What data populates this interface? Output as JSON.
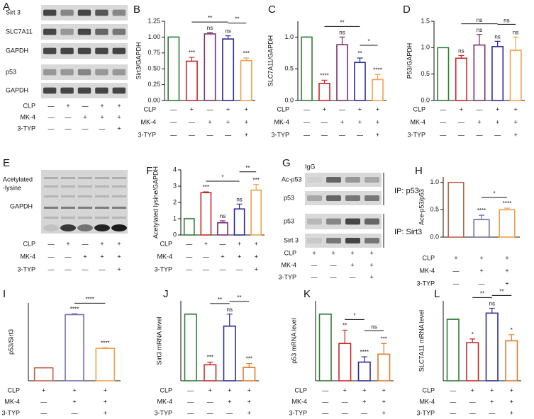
{
  "blots": [
    {
      "panel": "A",
      "labels": [
        "Sirt 3",
        "SLC7A11",
        "GAPDH",
        "p53",
        "GAPDH"
      ],
      "conditions": [
        {
          "name": "CLP",
          "marks": [
            "—",
            "+",
            "—",
            "+",
            "+"
          ]
        },
        {
          "name": "MK-4",
          "marks": [
            "—",
            "—",
            "+",
            "+",
            "+"
          ]
        },
        {
          "name": "3-TYP",
          "marks": [
            "—",
            "—",
            "—",
            "—",
            "+"
          ]
        }
      ]
    },
    {
      "panel": "E",
      "labels": [
        "Acetylated",
        "-lysine",
        "GAPDH"
      ],
      "conditions": [
        {
          "name": "CLP",
          "marks": [
            "—",
            "+",
            "—",
            "+",
            "+"
          ]
        },
        {
          "name": "MK-4",
          "marks": [
            "—",
            "—",
            "+",
            "+",
            "+"
          ]
        },
        {
          "name": "3-TYP",
          "marks": [
            "—",
            "—",
            "—",
            "—",
            "+"
          ]
        }
      ]
    },
    {
      "panel": "G",
      "labels": [
        "IgG",
        "Ac-p53",
        "p53",
        "IP: p53",
        "p53",
        "Sirt 3",
        "IP: Sirt3"
      ],
      "conditions": [
        {
          "name": "CLP",
          "marks": [
            "+",
            "+",
            "+",
            "+"
          ]
        },
        {
          "name": "MK-4",
          "marks": [
            "—",
            "—",
            "+",
            "+"
          ]
        },
        {
          "name": "3-TYP",
          "marks": [
            "—",
            "—",
            "—",
            "+"
          ]
        }
      ]
    }
  ],
  "chart_data": [
    {
      "type": "bar",
      "panel": "B",
      "ylabel": "Sirt3/GAPDH",
      "ylim": [
        0,
        1.25
      ],
      "yticks": [
        {
          "value": 0,
          "label": "0.00"
        },
        {
          "value": 0.25,
          "label": "0.25"
        },
        {
          "value": 0.5,
          "label": "0.50"
        },
        {
          "value": 0.75,
          "label": "0.75"
        },
        {
          "value": 1,
          "label": "1.00"
        },
        {
          "value": 1.25,
          "label": "1.25"
        }
      ],
      "values": [
        1.0,
        0.62,
        1.05,
        0.97,
        0.63
      ],
      "errors": [
        0,
        0.06,
        0.02,
        0.05,
        0.04
      ],
      "colors": [
        "#2e7d32",
        "#c62828",
        "#7b2d6e",
        "#2b2b95",
        "#f0a04b"
      ],
      "annotations": [
        "",
        "***",
        "ns",
        "ns",
        "***"
      ],
      "brackets": [
        {
          "label": "**",
          "bars": [
            1,
            3
          ]
        },
        {
          "label": "**",
          "bars": [
            3,
            4
          ]
        }
      ],
      "conditions": [
        {
          "name": "CLP",
          "marks": [
            "—",
            "+",
            "—",
            "+",
            "+"
          ]
        },
        {
          "name": "MK-4",
          "marks": [
            "—",
            "—",
            "+",
            "+",
            "+"
          ]
        },
        {
          "name": "3-TYP",
          "marks": [
            "—",
            "—",
            "—",
            "—",
            "+"
          ]
        }
      ]
    },
    {
      "type": "bar",
      "panel": "C",
      "ylabel": "SLC7A11/GAPDH",
      "ylim": [
        0,
        1.25
      ],
      "yticks": [
        {
          "value": 0,
          "label": "0.0"
        },
        0.5,
        {
          "value": 1,
          "label": "1.0"
        }
      ],
      "values": [
        1.0,
        0.27,
        0.88,
        0.6,
        0.33
      ],
      "errors": [
        0,
        0.05,
        0.12,
        0.07,
        0.08
      ],
      "colors": [
        "#2e7d32",
        "#c62828",
        "#7b2d6e",
        "#2b2b95",
        "#f0a04b"
      ],
      "annotations": [
        "",
        "****",
        "ns",
        "**",
        "****"
      ],
      "brackets": [
        {
          "label": "**",
          "bars": [
            1,
            3
          ]
        },
        {
          "label": "*",
          "bars": [
            3,
            4
          ]
        }
      ],
      "conditions": [
        {
          "name": "CLP",
          "marks": [
            "—",
            "+",
            "—",
            "+",
            "+"
          ]
        },
        {
          "name": "MK-4",
          "marks": [
            "—",
            "—",
            "+",
            "+",
            "+"
          ]
        },
        {
          "name": "3-TYP",
          "marks": [
            "—",
            "—",
            "—",
            "—",
            "+"
          ]
        }
      ]
    },
    {
      "type": "bar",
      "panel": "D",
      "ylabel": "P53/GAPDH",
      "ylim": [
        0,
        1.5
      ],
      "yticks": [
        {
          "value": 0,
          "label": "0.0"
        },
        0.5,
        {
          "value": 1,
          "label": "1.0"
        },
        1.5
      ],
      "values": [
        1.0,
        0.8,
        1.05,
        1.02,
        0.95
      ],
      "errors": [
        0,
        0.05,
        0.2,
        0.1,
        0.25
      ],
      "colors": [
        "#2e7d32",
        "#c62828",
        "#7b2d6e",
        "#2b2b95",
        "#f0a04b"
      ],
      "annotations": [
        "",
        "ns",
        "ns",
        "ns",
        "ns"
      ],
      "brackets": [
        {
          "label": "ns",
          "bars": [
            1,
            3
          ]
        },
        {
          "label": "ns",
          "bars": [
            3,
            4
          ]
        }
      ],
      "conditions": [
        {
          "name": "CLP",
          "marks": [
            "—",
            "+",
            "—",
            "+",
            "+"
          ]
        },
        {
          "name": "MK-4",
          "marks": [
            "—",
            "—",
            "+",
            "+",
            "+"
          ]
        },
        {
          "name": "3-TYP",
          "marks": [
            "—",
            "—",
            "—",
            "—",
            "+"
          ]
        }
      ]
    },
    {
      "type": "bar",
      "panel": "F",
      "ylabel": "Acetylated lysine/GAPDH",
      "ylim": [
        0,
        4
      ],
      "yticks": [
        0,
        1,
        2,
        3,
        4
      ],
      "values": [
        1.0,
        2.6,
        0.75,
        1.6,
        2.75
      ],
      "errors": [
        0,
        0.05,
        0.12,
        0.3,
        0.35
      ],
      "colors": [
        "#2e7d32",
        "#c62828",
        "#7b2d6e",
        "#2b2b95",
        "#f0a04b"
      ],
      "annotations": [
        "",
        "***",
        "ns",
        "ns",
        "***"
      ],
      "brackets": [
        {
          "label": "*",
          "bars": [
            1,
            3
          ]
        },
        {
          "label": "**",
          "bars": [
            3,
            4
          ]
        }
      ],
      "conditions": [
        {
          "name": "CLP",
          "marks": [
            "—",
            "+",
            "—",
            "+",
            "+"
          ]
        },
        {
          "name": "MK-4",
          "marks": [
            "—",
            "—",
            "+",
            "+",
            "+"
          ]
        },
        {
          "name": "3-TYP",
          "marks": [
            "—",
            "—",
            "—",
            "—",
            "+"
          ]
        }
      ]
    },
    {
      "type": "bar",
      "panel": "H",
      "ylabel": "Ace-p53/p53",
      "ylim": [
        0,
        1.1
      ],
      "yticks": [
        {
          "value": 0,
          "label": "0.0"
        },
        0.5,
        {
          "value": 1,
          "label": "1.0"
        }
      ],
      "values": [
        1.0,
        0.32,
        0.5
      ],
      "errors": [
        0,
        0.08,
        0.03
      ],
      "colors": [
        "#b5654a",
        "#6f6fb0",
        "#f0a04b"
      ],
      "annotations": [
        "",
        "****",
        "****"
      ],
      "brackets": [
        {
          "label": "*",
          "bars": [
            1,
            2
          ]
        }
      ],
      "conditions": [
        {
          "name": "CLP",
          "marks": [
            "+",
            "+",
            "+"
          ]
        },
        {
          "name": "MK-4",
          "marks": [
            "—",
            "+",
            "+"
          ]
        },
        {
          "name": "3-TYP",
          "marks": [
            "—",
            "—",
            "+"
          ]
        }
      ]
    },
    {
      "type": "bar",
      "panel": "I",
      "ylabel": "p53/Sirt3",
      "ylim": [
        0,
        6
      ],
      "values": [
        1.0,
        5.1,
        2.5
      ],
      "errors": [
        0,
        0.06,
        0.05
      ],
      "colors": [
        "#b5654a",
        "#6f6fb0",
        "#f0a04b"
      ],
      "annotations": [
        "",
        "****",
        "****"
      ],
      "brackets": [
        {
          "label": "****",
          "bars": [
            1,
            2
          ]
        }
      ],
      "conditions": [
        {
          "name": "CLP",
          "marks": [
            "+",
            "+",
            "+"
          ]
        },
        {
          "name": "MK-4",
          "marks": [
            "—",
            "+",
            "+"
          ]
        },
        {
          "name": "3-TYP",
          "marks": [
            "—",
            "—",
            "+"
          ]
        }
      ]
    },
    {
      "type": "bar",
      "panel": "J",
      "ylabel": "Sirt3 mRNA level",
      "ylim": [
        0,
        1.2
      ],
      "values": [
        1.0,
        0.24,
        0.82,
        0.2
      ],
      "errors": [
        0,
        0.04,
        0.18,
        0.06
      ],
      "colors": [
        "#2e7d32",
        "#c62828",
        "#2b2b95",
        "#e07b2a"
      ],
      "annotations": [
        "",
        "***",
        "ns",
        "***"
      ],
      "brackets": [
        {
          "label": "**",
          "bars": [
            1,
            2
          ]
        },
        {
          "label": "**",
          "bars": [
            2,
            3
          ]
        }
      ],
      "conditions": [
        {
          "name": "CLP",
          "marks": [
            "—",
            "+",
            "+",
            "+"
          ]
        },
        {
          "name": "MK-4",
          "marks": [
            "—",
            "—",
            "+",
            "+"
          ]
        },
        {
          "name": "3-TYP",
          "marks": [
            "—",
            "—",
            "—",
            "+"
          ]
        }
      ]
    },
    {
      "type": "bar",
      "panel": "K",
      "ylabel": "p53 mRNA level",
      "ylim": [
        0,
        1.2
      ],
      "values": [
        1.0,
        0.56,
        0.28,
        0.4
      ],
      "errors": [
        0,
        0.2,
        0.08,
        0.16
      ],
      "colors": [
        "#2e7d32",
        "#c62828",
        "#2b2b95",
        "#e07b2a"
      ],
      "annotations": [
        "",
        "**",
        "****",
        "***"
      ],
      "brackets": [
        {
          "label": "*",
          "bars": [
            1,
            2
          ]
        },
        {
          "label": "ns",
          "bars": [
            2,
            3
          ]
        }
      ],
      "conditions": [
        {
          "name": "CLP",
          "marks": [
            "—",
            "+",
            "+",
            "+"
          ]
        },
        {
          "name": "MK-4",
          "marks": [
            "—",
            "—",
            "+",
            "+"
          ]
        },
        {
          "name": "3-TYP",
          "marks": [
            "—",
            "—",
            "—",
            "+"
          ]
        }
      ]
    },
    {
      "type": "bar",
      "panel": "L",
      "ylabel": "SLC7A11 mRNA level",
      "ylim": [
        0,
        1.3
      ],
      "values": [
        1.0,
        0.62,
        1.1,
        0.65
      ],
      "errors": [
        0,
        0.06,
        0.08,
        0.1
      ],
      "colors": [
        "#2e7d32",
        "#c62828",
        "#2b2b95",
        "#e07b2a"
      ],
      "annotations": [
        "",
        "*",
        "ns",
        "*"
      ],
      "brackets": [
        {
          "label": "**",
          "bars": [
            1,
            2
          ]
        },
        {
          "label": "**",
          "bars": [
            2,
            3
          ]
        }
      ],
      "conditions": [
        {
          "name": "CLP",
          "marks": [
            "—",
            "+",
            "+",
            "+"
          ]
        },
        {
          "name": "MK-4",
          "marks": [
            "—",
            "—",
            "+",
            "+"
          ]
        },
        {
          "name": "3-TYP",
          "marks": [
            "—",
            "—",
            "—",
            "+"
          ]
        }
      ]
    }
  ]
}
